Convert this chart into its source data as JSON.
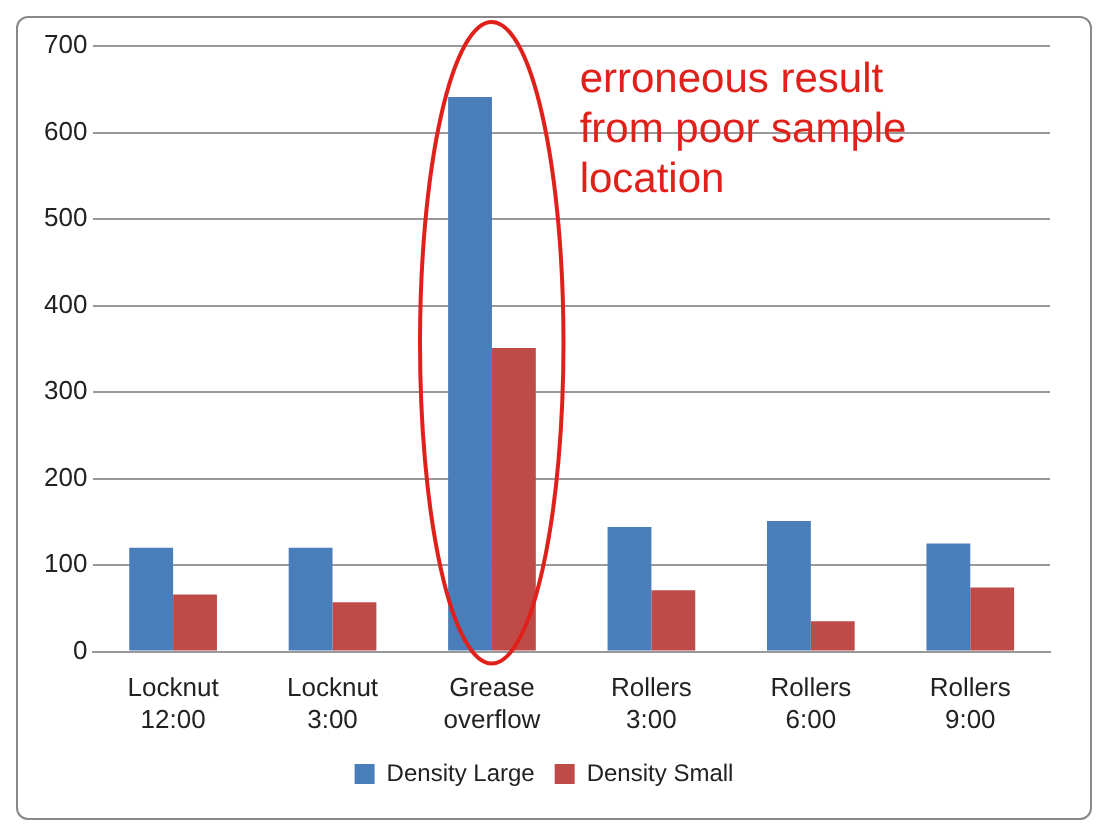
{
  "chart_data": {
    "type": "bar",
    "categories": [
      "Locknut\n12:00",
      "Locknut\n3:00",
      "Grease\noverflow",
      "Rollers\n3:00",
      "Rollers\n6:00",
      "Rollers\n9:00"
    ],
    "series": [
      {
        "name": "Density Large",
        "color": "#4a7ebb",
        "values": [
          120,
          120,
          641,
          144,
          151,
          125
        ]
      },
      {
        "name": "Density Small",
        "color": "#be4b48",
        "values": [
          66,
          57,
          351,
          71,
          35,
          74
        ]
      }
    ],
    "ylim": [
      0,
      700
    ],
    "yticks": [
      0,
      100,
      200,
      300,
      400,
      500,
      600,
      700
    ],
    "grid": "y",
    "legend": "bottom",
    "annotations": [
      "erroneous result from poor sample location"
    ]
  }
}
